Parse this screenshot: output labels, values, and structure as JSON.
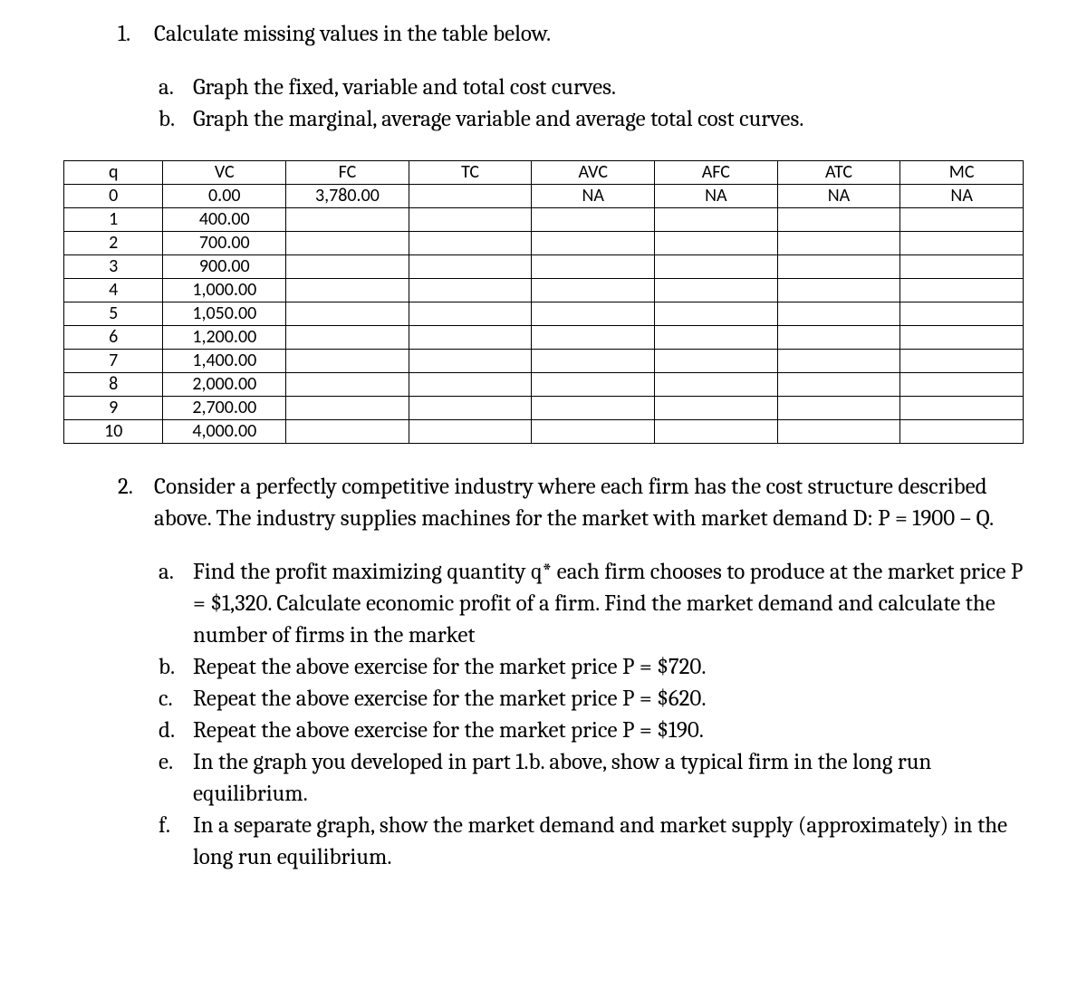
{
  "q1": {
    "number": "1.",
    "text": "Calculate missing values in the table below.",
    "subs": [
      {
        "letter": "a.",
        "text": "Graph the fixed, variable and total cost curves."
      },
      {
        "letter": "b.",
        "text": "Graph the marginal, average variable and average total cost curves."
      }
    ]
  },
  "table": {
    "columns": [
      "q",
      "VC",
      "FC",
      "TC",
      "AVC",
      "AFC",
      "ATC",
      "MC"
    ],
    "rows": [
      [
        "0",
        "0.00",
        "3,780.00",
        "",
        "NA",
        "NA",
        "NA",
        "NA"
      ],
      [
        "1",
        "400.00",
        "",
        "",
        "",
        "",
        "",
        ""
      ],
      [
        "2",
        "700.00",
        "",
        "",
        "",
        "",
        "",
        ""
      ],
      [
        "3",
        "900.00",
        "",
        "",
        "",
        "",
        "",
        ""
      ],
      [
        "4",
        "1,000.00",
        "",
        "",
        "",
        "",
        "",
        ""
      ],
      [
        "5",
        "1,050.00",
        "",
        "",
        "",
        "",
        "",
        ""
      ],
      [
        "6",
        "1,200.00",
        "",
        "",
        "",
        "",
        "",
        ""
      ],
      [
        "7",
        "1,400.00",
        "",
        "",
        "",
        "",
        "",
        ""
      ],
      [
        "8",
        "2,000.00",
        "",
        "",
        "",
        "",
        "",
        ""
      ],
      [
        "9",
        "2,700.00",
        "",
        "",
        "",
        "",
        "",
        ""
      ],
      [
        "10",
        "4,000.00",
        "",
        "",
        "",
        "",
        "",
        ""
      ]
    ],
    "col_classes": [
      "col-q",
      "col-vc",
      "col-fc",
      "col-tc",
      "col-avc",
      "col-afc",
      "col-atc",
      "col-mc"
    ],
    "border_color": "#000000",
    "background_color": "#ffffff",
    "header_fontsize": 20,
    "cell_fontsize": 20
  },
  "q2": {
    "number": "2.",
    "intro": "Consider a perfectly competitive industry where each firm has the cost structure described above. The industry supplies machines for the market with market demand D: P = 1900 – Q.",
    "subs": [
      {
        "letter": "a.",
        "text": "Find the profit maximizing quantity q* each firm chooses to produce at the market price P = $1,320. Calculate economic profit of a firm. Find the market demand and calculate the number of firms in the market"
      },
      {
        "letter": "b.",
        "text": "Repeat the above exercise for the market price P = $720."
      },
      {
        "letter": "c.",
        "text": "Repeat the above exercise for the market price P = $620."
      },
      {
        "letter": "d.",
        "text": "Repeat the above exercise for the market price P = $190."
      },
      {
        "letter": "e.",
        "text": "In the graph you developed in part 1.b. above, show a typical firm in the long run equilibrium."
      },
      {
        "letter": "f.",
        "text": "In a separate graph, show the market demand and market supply (approximately) in the long run equilibrium."
      }
    ]
  }
}
